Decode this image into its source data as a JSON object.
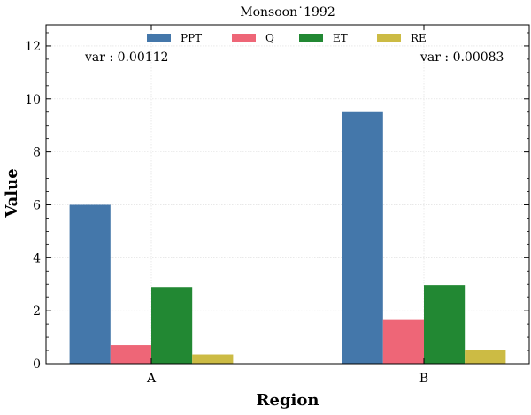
{
  "chart_data": {
    "type": "bar",
    "title": "Monsoon˙1992",
    "xlabel": "Region",
    "ylabel": "Value",
    "categories": [
      "A",
      "B"
    ],
    "ylim": [
      0,
      12.8
    ],
    "yticks": [
      0,
      2,
      4,
      6,
      8,
      10,
      12
    ],
    "grid": true,
    "legend_position": "top-center",
    "series": [
      {
        "name": "PPT",
        "color": "#4477aa",
        "values": [
          6.0,
          9.5
        ]
      },
      {
        "name": "Q",
        "color": "#ee6677",
        "values": [
          0.7,
          1.65
        ]
      },
      {
        "name": "ET",
        "color": "#228833",
        "values": [
          2.9,
          2.97
        ]
      },
      {
        "name": "RE",
        "color": "#ccbb44",
        "values": [
          0.35,
          0.52
        ]
      }
    ],
    "annotations": [
      {
        "text": "var : 0.00112",
        "category": "A"
      },
      {
        "text": "var : 0.00083",
        "category": "B"
      }
    ]
  }
}
